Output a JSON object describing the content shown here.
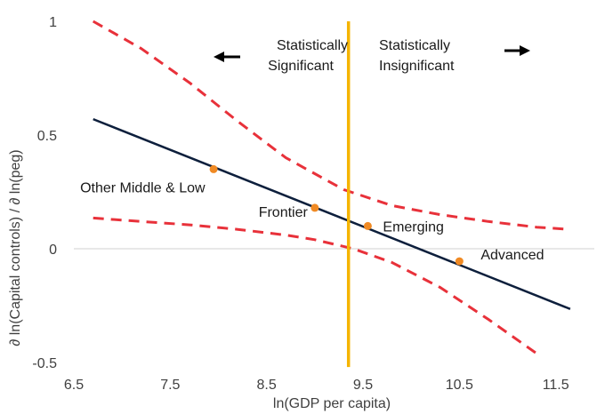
{
  "chart_data": {
    "type": "line",
    "title": "",
    "xlabel": "ln(GDP per capita)",
    "ylabel": "∂ ln(Capital controls) / ∂ ln(peg)",
    "xlim": [
      6.5,
      11.9
    ],
    "ylim": [
      -0.5,
      1.0
    ],
    "x_ticks": [
      6.5,
      7.5,
      8.5,
      9.5,
      10.5,
      11.5
    ],
    "x_tick_labels": [
      "6.5",
      "7.5",
      "8.5",
      "9.5",
      "10.5",
      "11.5"
    ],
    "y_ticks": [
      1,
      0.5,
      0,
      -0.5
    ],
    "y_tick_labels": [
      "1",
      "0.5",
      "0",
      "-0.5"
    ],
    "grid": false,
    "series": [
      {
        "role": "estimate",
        "style": "solid",
        "color": "#0d1f3c",
        "x": [
          6.7,
          11.65
        ],
        "y": [
          0.57,
          -0.265
        ]
      },
      {
        "role": "upper-bound",
        "style": "dashed",
        "color": "#e8313a",
        "x": [
          6.7,
          7.2,
          7.7,
          8.2,
          8.7,
          9.3,
          9.8,
          10.3,
          10.8,
          11.3,
          11.65
        ],
        "y": [
          1.0,
          0.88,
          0.73,
          0.56,
          0.4,
          0.26,
          0.19,
          0.15,
          0.12,
          0.095,
          0.085
        ]
      },
      {
        "role": "lower-bound",
        "style": "dashed",
        "color": "#e8313a",
        "x": [
          6.7,
          7.2,
          7.7,
          8.2,
          8.7,
          9.0,
          9.4,
          9.8,
          10.3,
          10.8,
          11.3
        ],
        "y": [
          0.135,
          0.12,
          0.105,
          0.085,
          0.06,
          0.04,
          0.0,
          -0.06,
          -0.17,
          -0.31,
          -0.46
        ]
      },
      {
        "role": "threshold",
        "style": "solid",
        "color": "#f5b400",
        "x": [
          9.35,
          9.35
        ],
        "y": [
          1.0,
          -0.52
        ]
      }
    ],
    "points": [
      {
        "label": "Other Middle & Low",
        "x": 7.95,
        "y": 0.35
      },
      {
        "label": "Frontier",
        "x": 9.0,
        "y": 0.18
      },
      {
        "label": "Emerging",
        "x": 9.55,
        "y": 0.1
      },
      {
        "label": "Advanced",
        "x": 10.5,
        "y": -0.055
      }
    ],
    "point_color": "#f08a24",
    "annotations": {
      "left_line1": "Statistically",
      "left_line2": "Significant",
      "right_line1": "Statistically",
      "right_line2": "Insignificant"
    },
    "arrows": [
      "left-arrow",
      "right-arrow"
    ]
  }
}
